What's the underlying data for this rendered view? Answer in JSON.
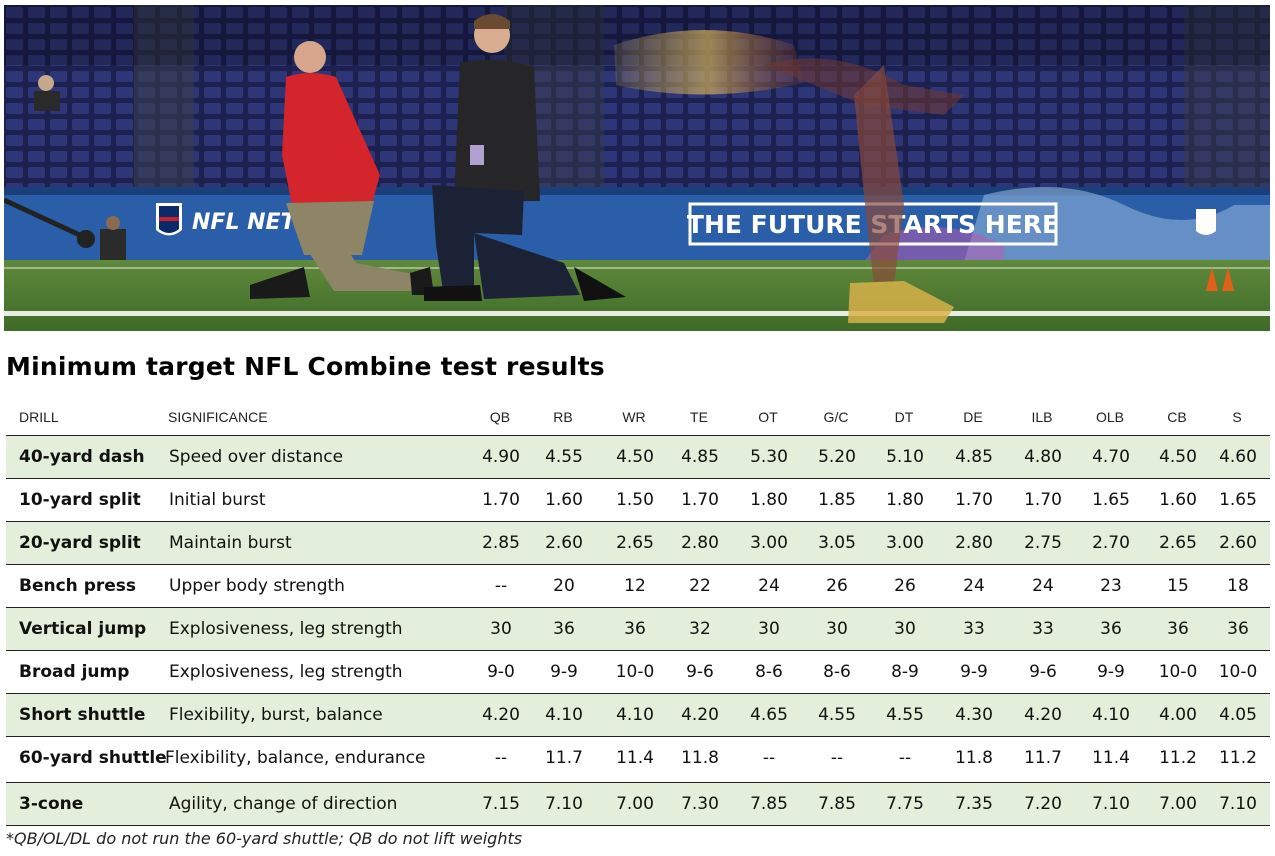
{
  "photo": {
    "banner_left": "NFL NETW",
    "banner_right": "THE FUTURE STARTS HERE",
    "colors": {
      "turf": "#4f7a34",
      "banner": "#2a5ea8",
      "seats": "#2b3270",
      "red_jacket": "#d4242c",
      "gold_shoe": "#d8b24a"
    }
  },
  "title": "Minimum target NFL Combine test results",
  "table": {
    "headers": [
      "DRILL",
      "SIGNIFICANCE",
      "QB",
      "RB",
      "WR",
      "TE",
      "OT",
      "G/C",
      "DT",
      "DE",
      "ILB",
      "OLB",
      "CB",
      "S"
    ],
    "rows": [
      {
        "drill": "40-yard dash",
        "significance": "Speed over distance",
        "values": [
          "4.90",
          "4.55",
          "4.50",
          "4.85",
          "5.30",
          "5.20",
          "5.10",
          "4.85",
          "4.80",
          "4.70",
          "4.50",
          "4.60"
        ]
      },
      {
        "drill": "10-yard split",
        "significance": "Initial burst",
        "values": [
          "1.70",
          "1.60",
          "1.50",
          "1.70",
          "1.80",
          "1.85",
          "1.80",
          "1.70",
          "1.70",
          "1.65",
          "1.60",
          "1.65"
        ]
      },
      {
        "drill": "20-yard split",
        "significance": "Maintain burst",
        "values": [
          "2.85",
          "2.60",
          "2.65",
          "2.80",
          "3.00",
          "3.05",
          "3.00",
          "2.80",
          "2.75",
          "2.70",
          "2.65",
          "2.60"
        ]
      },
      {
        "drill": "Bench press",
        "significance": "Upper body strength",
        "values": [
          "--",
          "20",
          "12",
          "22",
          "24",
          "26",
          "26",
          "24",
          "24",
          "23",
          "15",
          "18"
        ]
      },
      {
        "drill": "Vertical jump",
        "significance": "Explosiveness, leg strength",
        "values": [
          "30",
          "36",
          "36",
          "32",
          "30",
          "30",
          "30",
          "33",
          "33",
          "36",
          "36",
          "36"
        ]
      },
      {
        "drill": "Broad jump",
        "significance": "Explosiveness, leg strength",
        "values": [
          "9-0",
          "9-9",
          "10-0",
          "9-6",
          "8-6",
          "8-6",
          "8-9",
          "9-9",
          "9-6",
          "9-9",
          "10-0",
          "10-0"
        ]
      },
      {
        "drill": "Short shuttle",
        "significance": "Flexibility, burst, balance",
        "values": [
          "4.20",
          "4.10",
          "4.10",
          "4.20",
          "4.65",
          "4.55",
          "4.55",
          "4.30",
          "4.20",
          "4.10",
          "4.00",
          "4.05"
        ]
      },
      {
        "drill": "60-yard shuttle",
        "significance": "Flexibility, balance, endurance",
        "values": [
          "--",
          "11.7",
          "11.4",
          "11.8",
          "--",
          "--",
          "--",
          "11.8",
          "11.7",
          "11.4",
          "11.2",
          "11.2"
        ]
      },
      {
        "drill": "3-cone",
        "significance": "Agility, change of direction",
        "values": [
          "7.15",
          "7.10",
          "7.00",
          "7.30",
          "7.85",
          "7.85",
          "7.75",
          "7.35",
          "7.20",
          "7.10",
          "7.00",
          "7.10"
        ]
      }
    ]
  },
  "footnote": "*QB/OL/DL do not run the 60-yard shuttle; QB do not lift weights"
}
